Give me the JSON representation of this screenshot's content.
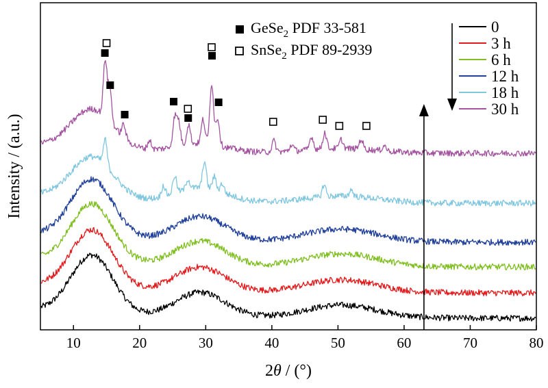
{
  "chart_data": {
    "type": "line",
    "title": "",
    "xlabel_prefix": "2",
    "xlabel_symbol": "θ",
    "xlabel_suffix": " / (°)",
    "ylabel": "Intensity / (a.u.)",
    "xlim": [
      5,
      80
    ],
    "x_ticks": [
      10,
      20,
      30,
      40,
      50,
      60,
      70,
      80
    ],
    "y_ticks_shown": false,
    "grid": false,
    "legend_placement": "top-right",
    "annotations": {
      "gese2": {
        "prefix": "GeSe",
        "sub": "2",
        "suffix": "  PDF 33-581",
        "marker": "filled-square"
      },
      "snse2": {
        "prefix": "SnSe",
        "sub": "2",
        "suffix": "  PDF 89-2939",
        "marker": "open-square"
      },
      "trend_arrow": "down",
      "vertical_arrow_x": 63
    },
    "series": [
      {
        "name": "0",
        "color": "#000000",
        "peaks": []
      },
      {
        "name": "3 h",
        "color": "#e41a1c",
        "peaks": []
      },
      {
        "name": "6 h",
        "color": "#7fbf1f",
        "peaks": []
      },
      {
        "name": "12 h",
        "color": "#1f3f9a",
        "peaks": []
      },
      {
        "name": "18 h",
        "color": "#7fc6e0",
        "peaks": [
          [
            14.8,
            2.3
          ],
          [
            23.6,
            1.0
          ],
          [
            25.3,
            1.6
          ],
          [
            27.3,
            0.9
          ],
          [
            29.8,
            2.4
          ],
          [
            31.3,
            1.2
          ],
          [
            32.5,
            0.8
          ],
          [
            47.9,
            1.1
          ],
          [
            52.0,
            0.6
          ]
        ]
      },
      {
        "name": "30 h",
        "color": "#a453a0",
        "peaks": [
          [
            14.8,
            5.2
          ],
          [
            15.5,
            3.0
          ],
          [
            17.6,
            1.2
          ],
          [
            21.5,
            0.8
          ],
          [
            25.3,
            2.6
          ],
          [
            25.9,
            2.2
          ],
          [
            27.4,
            1.8
          ],
          [
            29.6,
            2.2
          ],
          [
            30.9,
            5.6
          ],
          [
            31.8,
            2.5
          ],
          [
            40.3,
            1.0
          ],
          [
            43.0,
            0.6
          ],
          [
            46.0,
            1.2
          ],
          [
            48.0,
            1.5
          ],
          [
            50.5,
            0.8
          ],
          [
            53.5,
            0.9
          ],
          [
            57.0,
            0.5
          ]
        ]
      }
    ],
    "gese2_peak_x": [
      14.8,
      15.6,
      17.8,
      25.2,
      27.4,
      31.0,
      32.0
    ],
    "snse2_peak_x": [
      15.0,
      27.3,
      30.9,
      40.2,
      47.7,
      50.2,
      54.3
    ]
  }
}
